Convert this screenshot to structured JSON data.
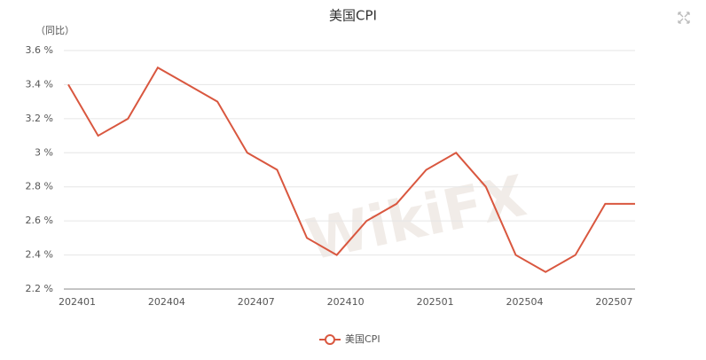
{
  "chart_data": {
    "type": "line",
    "title": "美国CPI",
    "y_label": "（同比）",
    "watermark": "WikiFX",
    "categories": [
      "202401",
      null,
      null,
      "202404",
      null,
      null,
      "202407",
      null,
      null,
      "202410",
      null,
      null,
      "202501",
      null,
      null,
      "202504",
      null,
      null,
      "202507",
      null
    ],
    "series": [
      {
        "name": "美国CPI",
        "color": "#d9573f",
        "values": [
          3.4,
          3.1,
          3.2,
          3.5,
          3.4,
          3.3,
          3.0,
          2.9,
          2.5,
          2.4,
          2.6,
          2.7,
          2.9,
          3.0,
          2.8,
          2.4,
          2.3,
          2.4,
          2.7,
          2.7
        ]
      }
    ],
    "ylim": [
      2.2,
      3.6
    ],
    "yticks": [
      {
        "value": 2.2,
        "label": "2.2 %"
      },
      {
        "value": 2.4,
        "label": "2.4 %"
      },
      {
        "value": 2.6,
        "label": "2.6 %"
      },
      {
        "value": 2.8,
        "label": "2.8 %"
      },
      {
        "value": 3,
        "label": "3 %"
      },
      {
        "value": 3.2,
        "label": "3.2 %"
      },
      {
        "value": 3.4,
        "label": "3.4 %"
      },
      {
        "value": 3.6,
        "label": "3.6 %"
      }
    ],
    "grid": true
  }
}
